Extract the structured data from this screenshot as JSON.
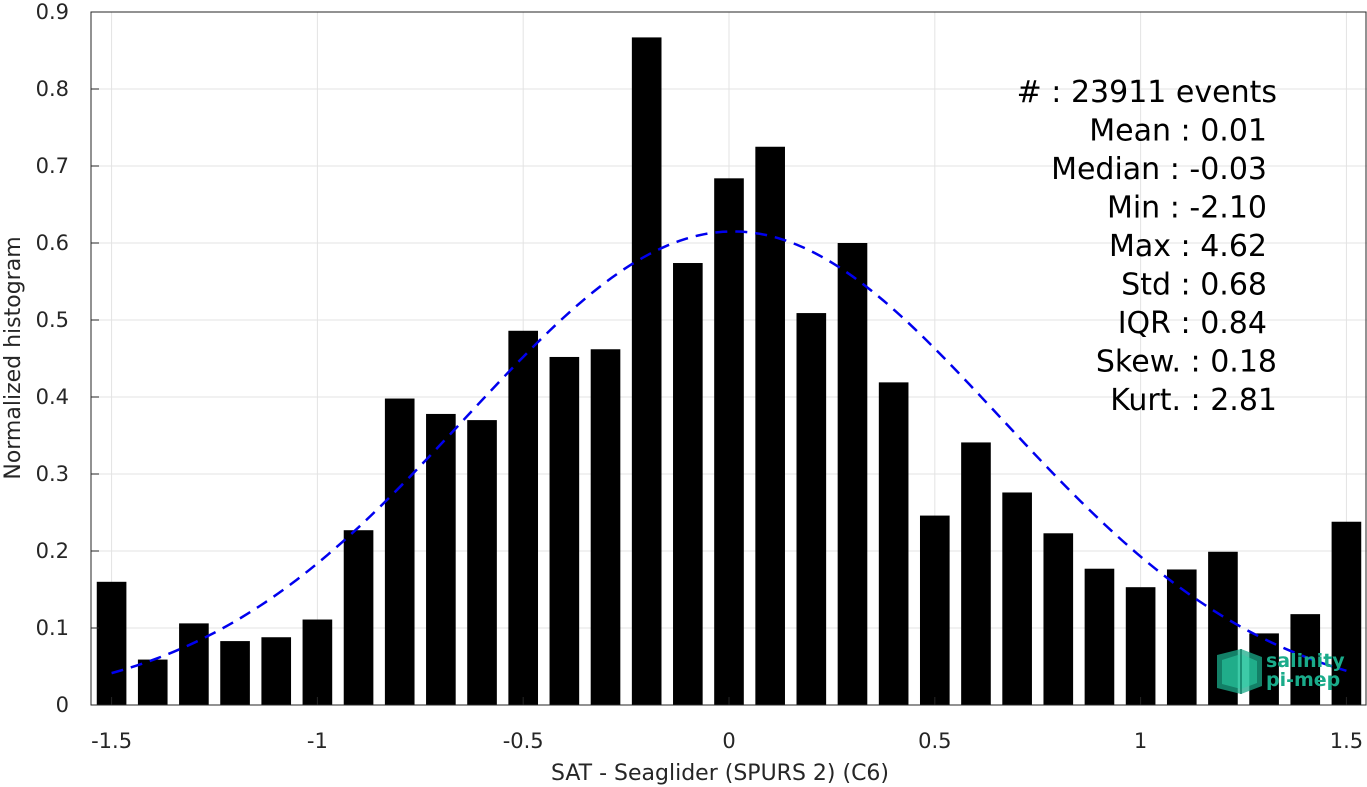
{
  "chart_data": {
    "type": "bar",
    "xlabel": "SAT - Seaglider (SPURS 2) (C6)",
    "ylabel": "Normalized histogram",
    "xlim": [
      -1.55,
      1.55
    ],
    "ylim": [
      0,
      0.9
    ],
    "x_ticks": [
      -1.5,
      -1,
      -0.5,
      0,
      0.5,
      1,
      1.5
    ],
    "x_tick_labels": [
      "-1.5",
      "-1",
      "-0.5",
      "0",
      "0.5",
      "1",
      "1.5"
    ],
    "y_ticks": [
      0,
      0.1,
      0.2,
      0.3,
      0.4,
      0.5,
      0.6,
      0.7,
      0.8,
      0.9
    ],
    "y_tick_labels": [
      "0",
      "0.1",
      "0.2",
      "0.3",
      "0.4",
      "0.5",
      "0.6",
      "0.7",
      "0.8",
      "0.9"
    ],
    "grid": true,
    "bar_width": 0.072,
    "bars": {
      "x": [
        -1.5,
        -1.4,
        -1.3,
        -1.2,
        -1.1,
        -1.0,
        -0.9,
        -0.8,
        -0.7,
        -0.6,
        -0.5,
        -0.4,
        -0.3,
        -0.2,
        -0.1,
        0.0,
        0.1,
        0.2,
        0.3,
        0.4,
        0.5,
        0.6,
        0.7,
        0.8,
        0.9,
        1.0,
        1.1,
        1.2,
        1.3,
        1.4,
        1.5
      ],
      "values": [
        0.16,
        0.059,
        0.106,
        0.083,
        0.088,
        0.111,
        0.227,
        0.398,
        0.378,
        0.37,
        0.486,
        0.452,
        0.462,
        0.867,
        0.574,
        0.684,
        0.725,
        0.509,
        0.6,
        0.419,
        0.246,
        0.341,
        0.276,
        0.223,
        0.177,
        0.153,
        0.176,
        0.199,
        0.093,
        0.118,
        0.238
      ],
      "color": "#000000"
    },
    "fit_curve": {
      "style": "dashed",
      "color": "#0000ee",
      "mean": 0.01,
      "std": 0.65,
      "peak": 0.615,
      "x_range": [
        -1.5,
        1.5
      ]
    },
    "stats_lines": [
      "#  : 23911 events",
      "Mean : 0.01",
      "Median : -0.03",
      "Min : -2.10",
      "Max : 4.62",
      "Std : 0.68",
      "IQR : 0.84",
      "Skew. : 0.18",
      "Kurt. : 2.81"
    ]
  },
  "logo": {
    "line1": "salinity",
    "line2": "pi-mep",
    "color": "#1aab8a"
  }
}
